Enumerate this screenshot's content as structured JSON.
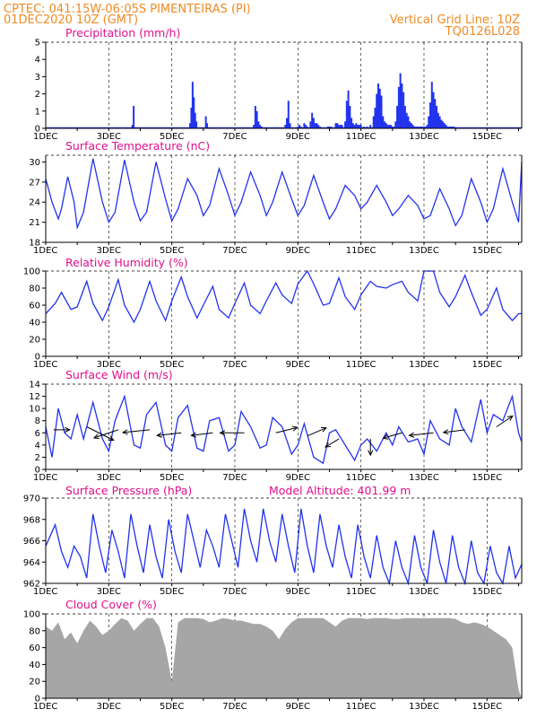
{
  "header": {
    "line1_left": "CPTEC:    041:15W-06:05S   PIMENTEIRAS (PI)",
    "line2_left": "01DEC2020 10Z (GMT)",
    "line2_right": "Vertical Grid Line: 10Z",
    "line3_right": "TQ0126L028"
  },
  "colors": {
    "header": "#f08a24",
    "panel_title": "#e0108c",
    "series": "#2233ee",
    "cloud": "#a6a6a6"
  },
  "chart_data": [
    {
      "type": "bar",
      "title": "Precipitation (mm/h)",
      "ylim": [
        0,
        5
      ],
      "yticks": [
        0,
        1,
        2,
        3,
        4,
        5
      ],
      "x_labels": [
        "1DEC",
        "3DEC",
        "5DEC",
        "7DEC",
        "9DEC",
        "11DEC",
        "13DEC",
        "15DEC"
      ],
      "x_days": [
        0,
        2,
        4,
        6,
        8,
        10,
        12,
        14
      ],
      "x_range_days": [
        0,
        15.1
      ],
      "x": [
        2.75,
        2.79,
        4.58,
        4.62,
        4.66,
        4.7,
        4.74,
        4.78,
        5.08,
        5.12,
        6.6,
        6.65,
        6.7,
        6.75,
        6.8,
        6.85,
        7.6,
        7.65,
        7.7,
        7.75,
        8.0,
        8.05,
        8.1,
        8.2,
        8.25,
        8.3,
        8.4,
        8.45,
        8.5,
        8.55,
        8.6,
        8.65,
        8.7,
        8.95,
        9.0,
        9.05,
        9.2,
        9.25,
        9.3,
        9.35,
        9.4,
        9.5,
        9.55,
        9.6,
        9.65,
        9.7,
        9.75,
        9.8,
        9.85,
        9.9,
        9.95,
        10.0,
        10.1,
        10.2,
        10.3,
        10.4,
        10.45,
        10.5,
        10.55,
        10.6,
        10.65,
        10.7,
        10.75,
        10.8,
        10.85,
        10.9,
        10.95,
        11.0,
        11.05,
        11.1,
        11.15,
        11.2,
        11.25,
        11.3,
        11.35,
        11.4,
        11.45,
        11.5,
        11.55,
        11.6,
        11.65,
        11.7,
        11.75,
        11.8,
        11.85,
        11.9,
        11.95,
        12.0,
        12.05,
        12.1,
        12.15,
        12.2,
        12.25,
        12.3,
        12.35,
        12.4,
        12.45,
        12.5,
        12.55,
        12.6,
        12.65,
        12.7,
        12.75,
        12.8,
        12.85,
        12.9,
        12.95
      ],
      "values": [
        0.2,
        1.3,
        0.3,
        1.2,
        2.7,
        1.8,
        0.9,
        0.4,
        0.7,
        0.3,
        0.2,
        1.3,
        1.0,
        0.4,
        0.2,
        0.1,
        0.2,
        0.6,
        1.6,
        0.3,
        0.1,
        0.2,
        0.1,
        0.3,
        0.2,
        0.1,
        0.4,
        0.9,
        0.6,
        0.3,
        0.3,
        0.2,
        0.1,
        0.1,
        0.1,
        0.1,
        0.3,
        0.3,
        0.2,
        0.2,
        0.2,
        0.4,
        1.6,
        2.2,
        1.3,
        0.6,
        0.3,
        0.2,
        0.3,
        0.2,
        0.2,
        0.2,
        0.1,
        0.1,
        0.2,
        0.7,
        1.2,
        2.0,
        2.6,
        2.3,
        1.9,
        0.7,
        0.4,
        0.3,
        0.2,
        0.2,
        0.2,
        0.1,
        0.1,
        0.4,
        1.3,
        2.4,
        3.2,
        2.6,
        2.1,
        1.3,
        0.9,
        0.7,
        0.4,
        0.3,
        0.2,
        0.1,
        0.1,
        0.1,
        0.1,
        0.1,
        0.1,
        0.1,
        0.1,
        0.2,
        0.7,
        1.5,
        2.7,
        2.1,
        1.7,
        1.3,
        0.9,
        0.7,
        0.5,
        0.4,
        0.3,
        0.2,
        0.1,
        0.1,
        0.1,
        0.1,
        0.1
      ]
    },
    {
      "type": "line",
      "title": "Surface Temperature (nC)",
      "ylim": [
        18,
        31
      ],
      "yticks": [
        18,
        21,
        24,
        27,
        30
      ],
      "x_labels": [
        "1DEC",
        "3DEC",
        "5DEC",
        "7DEC",
        "9DEC",
        "11DEC",
        "13DEC",
        "15DEC"
      ],
      "x_days": [
        0,
        2,
        4,
        6,
        8,
        10,
        12,
        14
      ],
      "x_range_days": [
        0,
        15.1
      ],
      "x": [
        0.0,
        0.2,
        0.4,
        0.5,
        0.7,
        0.9,
        1.0,
        1.2,
        1.5,
        1.8,
        2.0,
        2.2,
        2.5,
        2.8,
        3.0,
        3.2,
        3.5,
        3.8,
        4.0,
        4.2,
        4.5,
        4.8,
        5.0,
        5.2,
        5.5,
        5.8,
        6.0,
        6.2,
        6.5,
        6.8,
        7.0,
        7.2,
        7.5,
        7.8,
        8.0,
        8.2,
        8.5,
        8.8,
        9.0,
        9.2,
        9.5,
        9.8,
        10.0,
        10.2,
        10.5,
        10.8,
        11.0,
        11.2,
        11.5,
        11.8,
        12.0,
        12.2,
        12.5,
        12.8,
        13.0,
        13.2,
        13.5,
        13.8,
        14.0,
        14.2,
        14.5,
        14.8,
        15.0,
        15.1
      ],
      "values": [
        27.5,
        24.0,
        21.5,
        23.0,
        27.8,
        24.0,
        20.2,
        22.5,
        30.5,
        24.0,
        21.0,
        22.5,
        30.3,
        24.0,
        21.2,
        22.5,
        30.0,
        24.5,
        21.2,
        23.0,
        27.5,
        25.0,
        22.0,
        23.5,
        29.0,
        25.0,
        22.0,
        24.0,
        28.5,
        25.0,
        22.0,
        24.0,
        28.5,
        24.5,
        22.0,
        23.5,
        28.0,
        24.0,
        21.5,
        23.0,
        26.5,
        25.0,
        23.0,
        24.0,
        26.5,
        24.0,
        22.0,
        23.0,
        25.0,
        23.5,
        21.5,
        22.0,
        26.0,
        23.0,
        20.5,
        22.0,
        27.5,
        24.0,
        21.0,
        23.0,
        29.0,
        24.0,
        21.0,
        30.0
      ]
    },
    {
      "type": "line",
      "title": "Relative Humidity (%)",
      "ylim": [
        0,
        100
      ],
      "yticks": [
        0,
        20,
        40,
        60,
        80,
        100
      ],
      "x_labels": [
        "1DEC",
        "3DEC",
        "5DEC",
        "7DEC",
        "9DEC",
        "11DEC",
        "13DEC",
        "15DEC"
      ],
      "x_days": [
        0,
        2,
        4,
        6,
        8,
        10,
        12,
        14
      ],
      "x_range_days": [
        0,
        15.1
      ],
      "x": [
        0.0,
        0.3,
        0.5,
        0.8,
        1.0,
        1.3,
        1.5,
        1.8,
        2.0,
        2.3,
        2.5,
        2.8,
        3.0,
        3.3,
        3.5,
        3.8,
        4.0,
        4.3,
        4.5,
        4.8,
        5.0,
        5.3,
        5.5,
        5.8,
        6.0,
        6.3,
        6.5,
        6.8,
        7.0,
        7.3,
        7.5,
        7.8,
        8.0,
        8.3,
        8.5,
        8.8,
        9.0,
        9.3,
        9.5,
        9.8,
        10.0,
        10.3,
        10.5,
        10.8,
        11.0,
        11.3,
        11.5,
        11.8,
        12.0,
        12.3,
        12.5,
        12.8,
        13.0,
        13.3,
        13.5,
        13.8,
        14.0,
        14.3,
        14.5,
        14.8,
        15.0,
        15.1
      ],
      "values": [
        50,
        62,
        75,
        55,
        58,
        88,
        62,
        42,
        58,
        90,
        60,
        40,
        55,
        88,
        65,
        42,
        65,
        93,
        70,
        45,
        60,
        82,
        55,
        45,
        62,
        86,
        60,
        50,
        65,
        86,
        72,
        62,
        85,
        100,
        85,
        60,
        62,
        92,
        70,
        55,
        72,
        88,
        82,
        80,
        84,
        88,
        75,
        65,
        100,
        100,
        75,
        58,
        70,
        95,
        75,
        48,
        55,
        80,
        55,
        42,
        50,
        50
      ]
    },
    {
      "type": "line",
      "title": "Surface Wind (m/s)",
      "ylim": [
        0,
        14
      ],
      "yticks": [
        0,
        2,
        4,
        6,
        8,
        10,
        12,
        14
      ],
      "x_labels": [
        "1DEC",
        "3DEC",
        "5DEC",
        "7DEC",
        "9DEC",
        "11DEC",
        "13DEC",
        "15DEC"
      ],
      "x_days": [
        0,
        2,
        4,
        6,
        8,
        10,
        12,
        14
      ],
      "x_range_days": [
        0,
        15.1
      ],
      "x": [
        0.0,
        0.2,
        0.4,
        0.6,
        0.8,
        1.0,
        1.2,
        1.5,
        1.8,
        2.0,
        2.2,
        2.5,
        2.8,
        3.0,
        3.2,
        3.5,
        3.8,
        4.0,
        4.2,
        4.5,
        4.8,
        5.0,
        5.2,
        5.5,
        5.8,
        6.0,
        6.2,
        6.5,
        6.8,
        7.0,
        7.2,
        7.5,
        7.8,
        8.0,
        8.2,
        8.5,
        8.8,
        9.0,
        9.2,
        9.5,
        9.8,
        10.0,
        10.2,
        10.5,
        10.8,
        11.0,
        11.2,
        11.5,
        11.8,
        12.0,
        12.2,
        12.5,
        12.8,
        13.0,
        13.2,
        13.5,
        13.8,
        14.0,
        14.2,
        14.5,
        14.8,
        15.0,
        15.1
      ],
      "values": [
        7.0,
        2.0,
        10.0,
        6.0,
        5.0,
        9.0,
        5.0,
        11.0,
        5.0,
        3.0,
        8.0,
        12.0,
        4.0,
        3.5,
        9.0,
        11.0,
        4.0,
        3.0,
        8.5,
        10.5,
        3.5,
        3.0,
        8.0,
        8.5,
        3.0,
        4.0,
        9.5,
        7.0,
        3.5,
        4.0,
        8.5,
        7.0,
        2.5,
        4.0,
        7.5,
        2.0,
        1.0,
        6.0,
        6.5,
        4.0,
        1.5,
        4.0,
        5.0,
        3.0,
        6.0,
        4.0,
        7.0,
        4.5,
        5.0,
        2.5,
        8.0,
        5.0,
        4.0,
        10.0,
        7.0,
        4.5,
        11.5,
        6.0,
        9.0,
        8.0,
        12.0,
        6.0,
        4.5
      ],
      "arrows": {
        "x": [
          0.25,
          1.3,
          2.3,
          3.3,
          4.3,
          5.3,
          6.3,
          7.3,
          8.3,
          9.3,
          10.3,
          11.3,
          12.3,
          13.3,
          14.3
        ],
        "y": [
          6.5,
          7.0,
          6.5,
          6.5,
          6.0,
          6.0,
          6.0,
          6.0,
          5.5,
          5.0,
          5.0,
          6.0,
          6.0,
          6.5,
          7.0
        ],
        "u": [
          0.6,
          1.0,
          -0.9,
          -1.0,
          -0.9,
          -0.8,
          -0.9,
          0.8,
          0.7,
          -0.5,
          0.0,
          -0.7,
          -0.9,
          -0.8,
          0.6
        ],
        "v": [
          0.0,
          -0.5,
          -0.3,
          -0.1,
          -0.1,
          -0.1,
          0.0,
          0.2,
          0.3,
          -0.3,
          -0.6,
          -0.2,
          -0.1,
          -0.1,
          0.4
        ]
      }
    },
    {
      "type": "line",
      "title": "Surface Pressure (hPa)",
      "subtitle": "Model Altitude: 401.99 m",
      "ylim": [
        962,
        970
      ],
      "yticks": [
        962,
        964,
        966,
        968,
        970
      ],
      "x_labels": [
        "1DEC",
        "3DEC",
        "5DEC",
        "7DEC",
        "9DEC",
        "11DEC",
        "13DEC",
        "15DEC"
      ],
      "x_days": [
        0,
        2,
        4,
        6,
        8,
        10,
        12,
        14
      ],
      "x_range_days": [
        0,
        15.1
      ],
      "x": [
        0.0,
        0.15,
        0.3,
        0.5,
        0.7,
        0.9,
        1.1,
        1.3,
        1.5,
        1.7,
        1.9,
        2.1,
        2.3,
        2.5,
        2.7,
        2.9,
        3.1,
        3.3,
        3.5,
        3.7,
        3.9,
        4.1,
        4.3,
        4.5,
        4.7,
        4.9,
        5.1,
        5.3,
        5.5,
        5.7,
        5.9,
        6.1,
        6.3,
        6.5,
        6.7,
        6.9,
        7.1,
        7.3,
        7.5,
        7.7,
        7.9,
        8.1,
        8.3,
        8.5,
        8.7,
        8.9,
        9.1,
        9.3,
        9.5,
        9.7,
        9.9,
        10.1,
        10.3,
        10.5,
        10.7,
        10.9,
        11.1,
        11.3,
        11.5,
        11.7,
        11.9,
        12.1,
        12.3,
        12.5,
        12.7,
        12.9,
        13.1,
        13.3,
        13.5,
        13.7,
        13.9,
        14.1,
        14.3,
        14.5,
        14.7,
        14.9,
        15.1
      ],
      "values": [
        965.5,
        966.5,
        967.5,
        965.0,
        963.5,
        965.5,
        964.5,
        962.5,
        968.5,
        965.5,
        963.0,
        967.0,
        965.0,
        962.5,
        968.5,
        965.5,
        963.0,
        967.5,
        964.5,
        962.5,
        968.0,
        965.0,
        963.0,
        968.5,
        966.0,
        963.5,
        967.0,
        965.5,
        963.5,
        968.5,
        966.0,
        963.5,
        969.0,
        966.0,
        964.0,
        969.0,
        966.0,
        964.0,
        968.5,
        965.5,
        963.0,
        969.0,
        965.5,
        963.0,
        968.5,
        965.5,
        963.5,
        967.5,
        964.5,
        962.5,
        967.5,
        964.5,
        962.5,
        966.5,
        963.5,
        962.0,
        966.0,
        963.5,
        962.0,
        966.5,
        963.5,
        962.0,
        967.0,
        964.0,
        962.0,
        966.5,
        963.5,
        962.0,
        966.0,
        963.0,
        962.0,
        965.5,
        963.0,
        962.0,
        965.5,
        962.5,
        963.8
      ]
    },
    {
      "type": "area",
      "title": "Cloud Cover (%)",
      "ylim": [
        0,
        100
      ],
      "yticks": [
        0,
        20,
        40,
        60,
        80,
        100
      ],
      "x_labels": [
        "1DEC",
        "3DEC",
        "5DEC",
        "7DEC",
        "9DEC",
        "11DEC",
        "13DEC",
        "15DEC"
      ],
      "x_days": [
        0,
        2,
        4,
        6,
        8,
        10,
        12,
        14
      ],
      "x_range_days": [
        0,
        15.1
      ],
      "x": [
        0.0,
        0.2,
        0.4,
        0.6,
        0.8,
        1.0,
        1.2,
        1.4,
        1.6,
        1.8,
        2.0,
        2.2,
        2.4,
        2.6,
        2.8,
        3.0,
        3.2,
        3.4,
        3.6,
        3.8,
        4.0,
        4.2,
        4.4,
        4.6,
        4.8,
        5.0,
        5.2,
        5.4,
        5.6,
        5.8,
        6.0,
        6.2,
        6.4,
        6.6,
        6.8,
        7.0,
        7.2,
        7.4,
        7.6,
        7.8,
        8.0,
        8.2,
        8.4,
        8.6,
        8.8,
        9.0,
        9.2,
        9.4,
        9.6,
        9.8,
        10.0,
        10.2,
        10.4,
        10.6,
        10.8,
        11.0,
        11.2,
        11.4,
        11.6,
        11.8,
        12.0,
        12.2,
        12.4,
        12.6,
        12.8,
        13.0,
        13.2,
        13.4,
        13.6,
        13.8,
        14.0,
        14.2,
        14.4,
        14.6,
        14.8,
        15.0,
        15.1
      ],
      "values": [
        85,
        80,
        90,
        70,
        78,
        65,
        80,
        92,
        85,
        75,
        80,
        88,
        95,
        92,
        80,
        88,
        95,
        95,
        85,
        60,
        20,
        90,
        95,
        95,
        95,
        94,
        90,
        92,
        95,
        94,
        92,
        92,
        90,
        88,
        88,
        85,
        80,
        70,
        82,
        90,
        95,
        95,
        95,
        95,
        95,
        90,
        85,
        92,
        95,
        95,
        95,
        94,
        95,
        95,
        95,
        94,
        94,
        95,
        95,
        95,
        95,
        95,
        95,
        95,
        95,
        94,
        90,
        88,
        90,
        88,
        85,
        80,
        75,
        70,
        60,
        10,
        0
      ]
    }
  ]
}
